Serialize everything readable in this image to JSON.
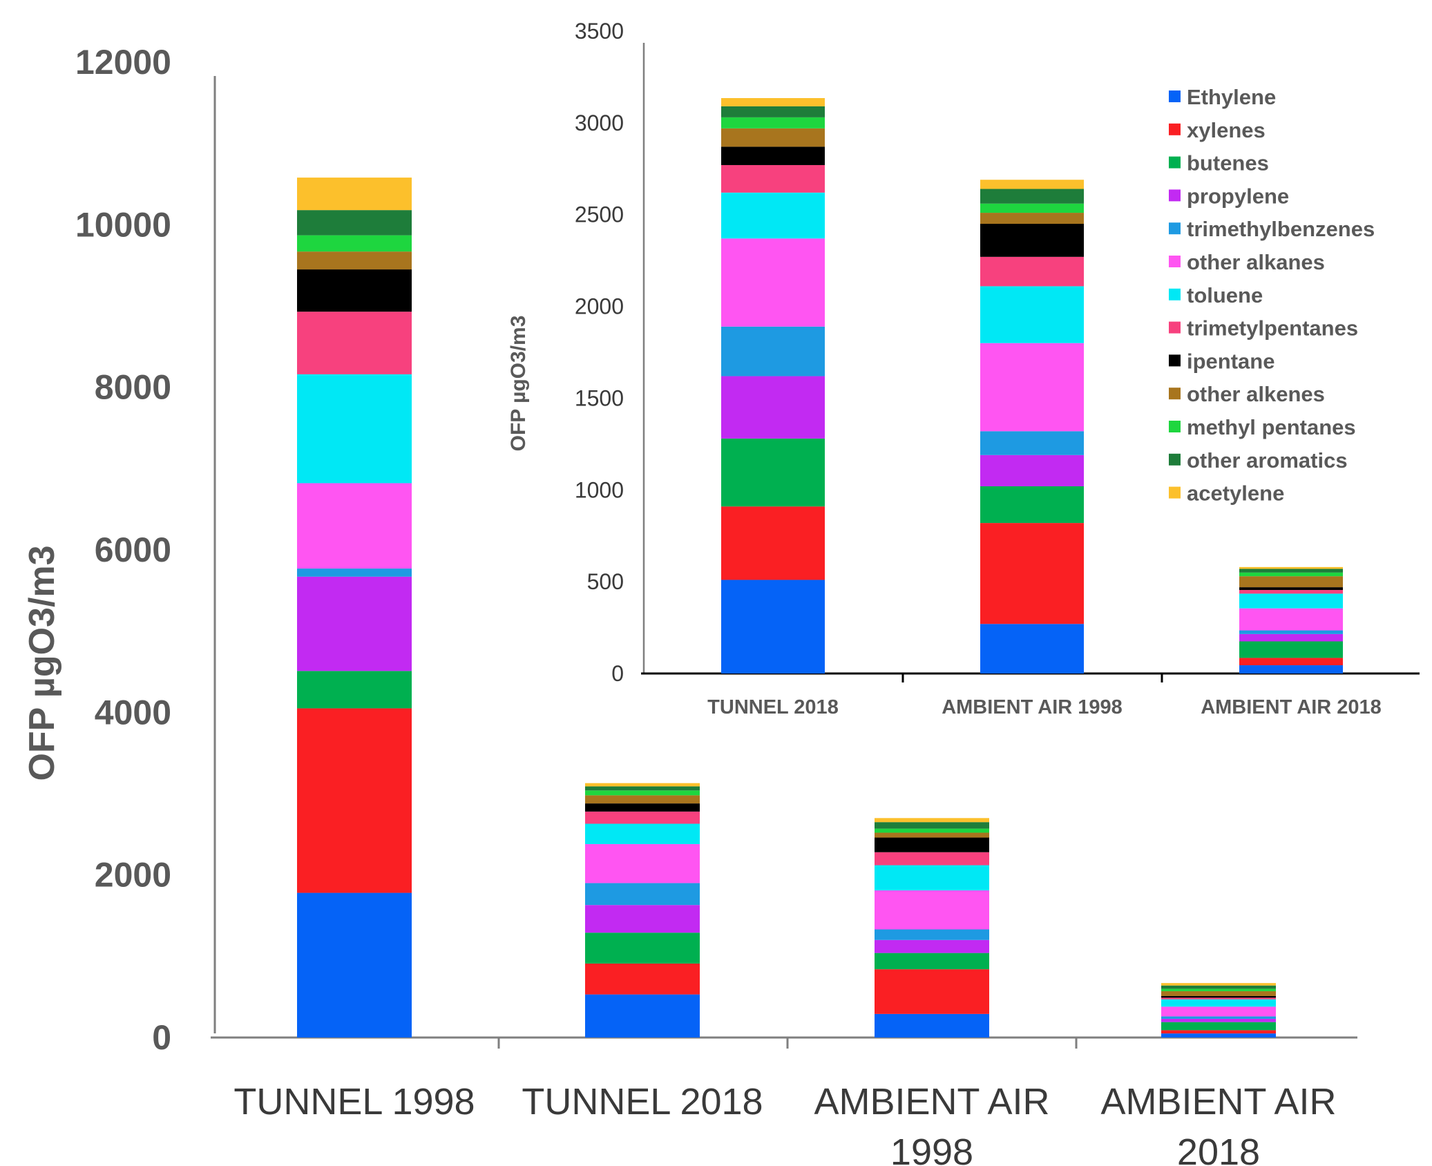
{
  "chart_data": [
    {
      "type": "bar",
      "stacked": true,
      "title": "",
      "ylabel": "OFP  µgO3/m3",
      "xlabel": "",
      "ylim": [
        0,
        12000
      ],
      "yticks": [
        0,
        2000,
        4000,
        6000,
        8000,
        10000,
        12000
      ],
      "categories": [
        "TUNNEL 1998",
        "TUNNEL 2018",
        "AMBIENT AIR 1998",
        "AMBIENT AIR 2018"
      ],
      "category_lines": [
        [
          "TUNNEL 1998"
        ],
        [
          "TUNNEL 2018"
        ],
        [
          "AMBIENT AIR",
          "1998"
        ],
        [
          "AMBIENT AIR",
          "2018"
        ]
      ],
      "series": [
        {
          "name": "Ethylene",
          "color": "#0563f7",
          "values": [
            1780,
            530,
            290,
            50
          ]
        },
        {
          "name": "xylenes",
          "color": "#fa1f23",
          "values": [
            2270,
            380,
            550,
            40
          ]
        },
        {
          "name": "butenes",
          "color": "#00b050",
          "values": [
            460,
            380,
            200,
            100
          ]
        },
        {
          "name": "propylene",
          "color": "#c22af2",
          "values": [
            1160,
            340,
            160,
            40
          ]
        },
        {
          "name": "trimethylbenzenes",
          "color": "#1e9ae2",
          "values": [
            100,
            270,
            130,
            30
          ]
        },
        {
          "name": "other alkanes",
          "color": "#ff55f2",
          "values": [
            1050,
            480,
            480,
            120
          ]
        },
        {
          "name": "toluene",
          "color": "#00e8f5",
          "values": [
            1340,
            250,
            310,
            90
          ]
        },
        {
          "name": "trimetylpentanes",
          "color": "#f7417e",
          "values": [
            770,
            150,
            160,
            20
          ]
        },
        {
          "name": "ipentane",
          "color": "#000000",
          "values": [
            520,
            100,
            180,
            20
          ]
        },
        {
          "name": "other alkenes",
          "color": "#a8751e",
          "values": [
            220,
            100,
            60,
            60
          ]
        },
        {
          "name": "methyl pentanes",
          "color": "#1ed63f",
          "values": [
            200,
            60,
            50,
            30
          ]
        },
        {
          "name": "other aromatics",
          "color": "#1e7d3a",
          "values": [
            310,
            50,
            80,
            40
          ]
        },
        {
          "name": "acetylene",
          "color": "#fcc02c",
          "values": [
            400,
            40,
            50,
            30
          ]
        }
      ]
    },
    {
      "type": "bar",
      "stacked": true,
      "title": "",
      "ylabel": "OFP  µgO3/m3",
      "xlabel": "",
      "ylim": [
        0,
        3500
      ],
      "yticks": [
        0,
        500,
        1000,
        1500,
        2000,
        2500,
        3000,
        3500
      ],
      "categories": [
        "TUNNEL 2018",
        "AMBIENT AIR 1998",
        "AMBIENT AIR 2018"
      ],
      "legend_position": "top-right",
      "series": [
        {
          "name": "Ethylene",
          "color": "#0563f7",
          "values": [
            510,
            270,
            45
          ]
        },
        {
          "name": "xylenes",
          "color": "#fa1f23",
          "values": [
            400,
            550,
            40
          ]
        },
        {
          "name": "butenes",
          "color": "#00b050",
          "values": [
            370,
            200,
            90
          ]
        },
        {
          "name": "propylene",
          "color": "#c22af2",
          "values": [
            340,
            170,
            40
          ]
        },
        {
          "name": "trimethylbenzenes",
          "color": "#1e9ae2",
          "values": [
            270,
            130,
            20
          ]
        },
        {
          "name": "other alkanes",
          "color": "#ff55f2",
          "values": [
            480,
            480,
            120
          ]
        },
        {
          "name": "toluene",
          "color": "#00e8f5",
          "values": [
            250,
            310,
            80
          ]
        },
        {
          "name": "trimetylpentanes",
          "color": "#f7417e",
          "values": [
            150,
            160,
            20
          ]
        },
        {
          "name": "ipentane",
          "color": "#000000",
          "values": [
            100,
            180,
            15
          ]
        },
        {
          "name": "other alkenes",
          "color": "#a8751e",
          "values": [
            100,
            60,
            60
          ]
        },
        {
          "name": "methyl pentanes",
          "color": "#1ed63f",
          "values": [
            60,
            50,
            20
          ]
        },
        {
          "name": "other aromatics",
          "color": "#1e7d3a",
          "values": [
            60,
            80,
            20
          ]
        },
        {
          "name": "acetylene",
          "color": "#fcc02c",
          "values": [
            45,
            50,
            10
          ]
        }
      ]
    }
  ]
}
